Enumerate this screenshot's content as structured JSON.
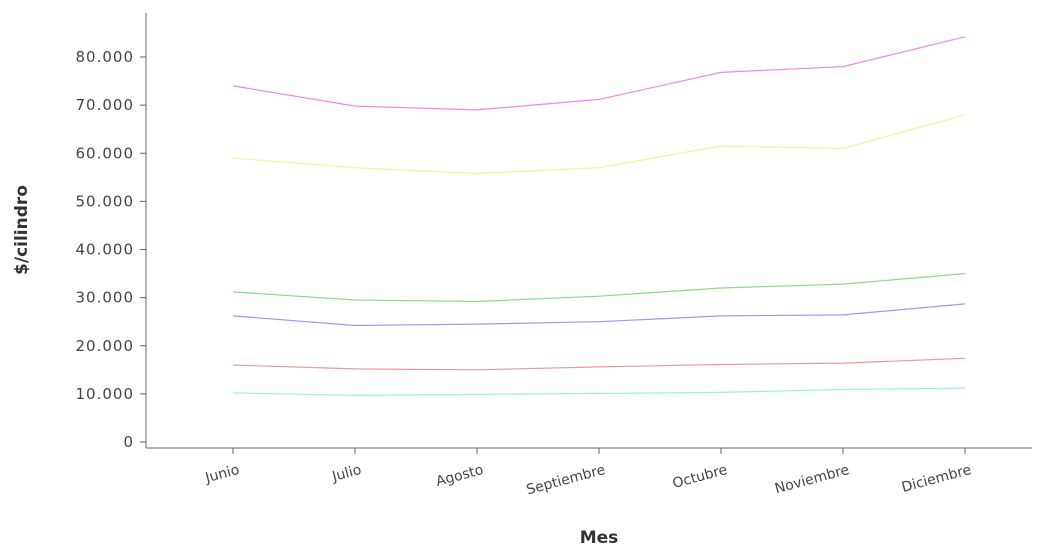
{
  "chart_data": {
    "type": "line",
    "xlabel": "Mes",
    "ylabel": "$/cilindro",
    "categories": [
      "Junio",
      "Julio",
      "Agosto",
      "Septiembre",
      "Octubre",
      "Noviembre",
      "Diciembre"
    ],
    "ylim": [
      0,
      85000
    ],
    "yticks": [
      0,
      10000,
      20000,
      30000,
      40000,
      50000,
      60000,
      70000,
      80000
    ],
    "ytick_labels": [
      "0",
      "10.000",
      "20.000",
      "30.000",
      "40.000",
      "50.000",
      "60.000",
      "70.000",
      "80.000"
    ],
    "grid": false,
    "legend": "none",
    "series": [
      {
        "color": "#ee88ee",
        "values": [
          74000,
          69800,
          69000,
          71200,
          76800,
          78000,
          84200
        ]
      },
      {
        "color": "#f2f29a",
        "values": [
          59000,
          57000,
          55800,
          57000,
          61500,
          61000,
          68000
        ]
      },
      {
        "color": "#88dd88",
        "values": [
          31200,
          29500,
          29200,
          30300,
          32000,
          32800,
          35000
        ]
      },
      {
        "color": "#9a9aee",
        "values": [
          26200,
          24200,
          24500,
          25000,
          26200,
          26400,
          28700
        ]
      },
      {
        "color": "#ee9999",
        "values": [
          16000,
          15200,
          15000,
          15600,
          16100,
          16400,
          17400
        ]
      },
      {
        "color": "#99eeee",
        "values": [
          10200,
          9700,
          9900,
          10100,
          10300,
          10900,
          11200
        ]
      }
    ]
  }
}
